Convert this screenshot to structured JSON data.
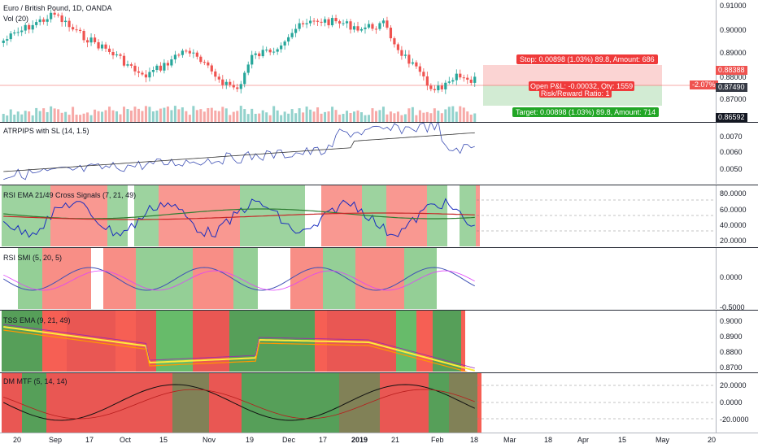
{
  "main": {
    "symbol": "Euro / British Pound, 1D, OANDA",
    "volume_label": "Vol (20)",
    "price_ticks": [
      "0.91000",
      "0.90000",
      "0.89000",
      "0.88000",
      "0.87000"
    ],
    "stop_tag": "0.88388",
    "open_tag": "0.87490",
    "target_tag": "0.86592",
    "pnl_tag": "-2.07%",
    "stop_label": "Stop: 0.00898 (1.03%) 89.8, Amount: 686",
    "target_label": "Target: 0.00898 (1.03%) 89.8, Amount: 714",
    "open_pnl_label": "Open P&L: -0.00032, Qty: 1559",
    "risk_reward_label": "Risk/Reward Ratio: 1"
  },
  "atr": {
    "title": "ATRPIPS with SL (14, 1.5)",
    "ticks": [
      "0.0070",
      "0.0060",
      "0.0050"
    ]
  },
  "rsi": {
    "title": "RSI EMA 21/49 Cross Signals (7, 21, 49)",
    "ticks": [
      "80.0000",
      "60.0000",
      "40.0000",
      "20.0000"
    ]
  },
  "smi": {
    "title": "RSI SMI (5, 20, 5)",
    "ticks": [
      "0.0000",
      "-0.5000"
    ]
  },
  "ema": {
    "title": "TSS EMA (9, 21, 49)",
    "ticks": [
      "0.9000",
      "0.8900",
      "0.8800",
      "0.8700"
    ]
  },
  "dmi": {
    "title": "DM MTF (5, 14, 14)",
    "ticks": [
      "20.0000",
      "0.0000",
      "-20.0000"
    ]
  },
  "xaxis": [
    "20",
    "Sep",
    "17",
    "Oct",
    "15",
    "Nov",
    "19",
    "Dec",
    "17",
    "2019",
    "21",
    "Feb",
    "18",
    "Mar",
    "18",
    "Apr",
    "15",
    "May",
    "20"
  ],
  "colors": {
    "up": "#26a69a",
    "down": "#ef5350",
    "green_zone": "#4caf50",
    "red_zone": "#f44336"
  }
}
